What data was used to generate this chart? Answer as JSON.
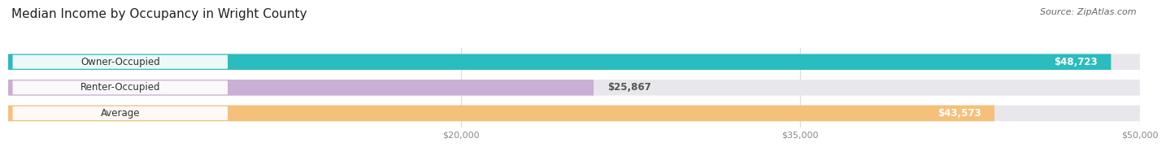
{
  "title": "Median Income by Occupancy in Wright County",
  "source": "Source: ZipAtlas.com",
  "categories": [
    "Owner-Occupied",
    "Renter-Occupied",
    "Average"
  ],
  "values": [
    48723,
    25867,
    43573
  ],
  "labels": [
    "$48,723",
    "$25,867",
    "$43,573"
  ],
  "bar_colors": [
    "#2bbcbf",
    "#c9afd4",
    "#f5c07a"
  ],
  "bar_bg_color": "#e8e8ec",
  "background_color": "#ffffff",
  "xmin": 0,
  "xmax": 50000,
  "xticks": [
    20000,
    35000,
    50000
  ],
  "xtick_labels": [
    "$20,000",
    "$35,000",
    "$50,000"
  ],
  "title_fontsize": 11,
  "source_fontsize": 8,
  "bar_label_fontsize": 8.5,
  "cat_label_fontsize": 8.5,
  "bar_height": 0.62,
  "bar_label_color_inside": "#ffffff",
  "bar_label_color_outside": "#555555",
  "label_inside_threshold": 0.55,
  "grid_color": "#dddddd",
  "tick_color": "#888888"
}
